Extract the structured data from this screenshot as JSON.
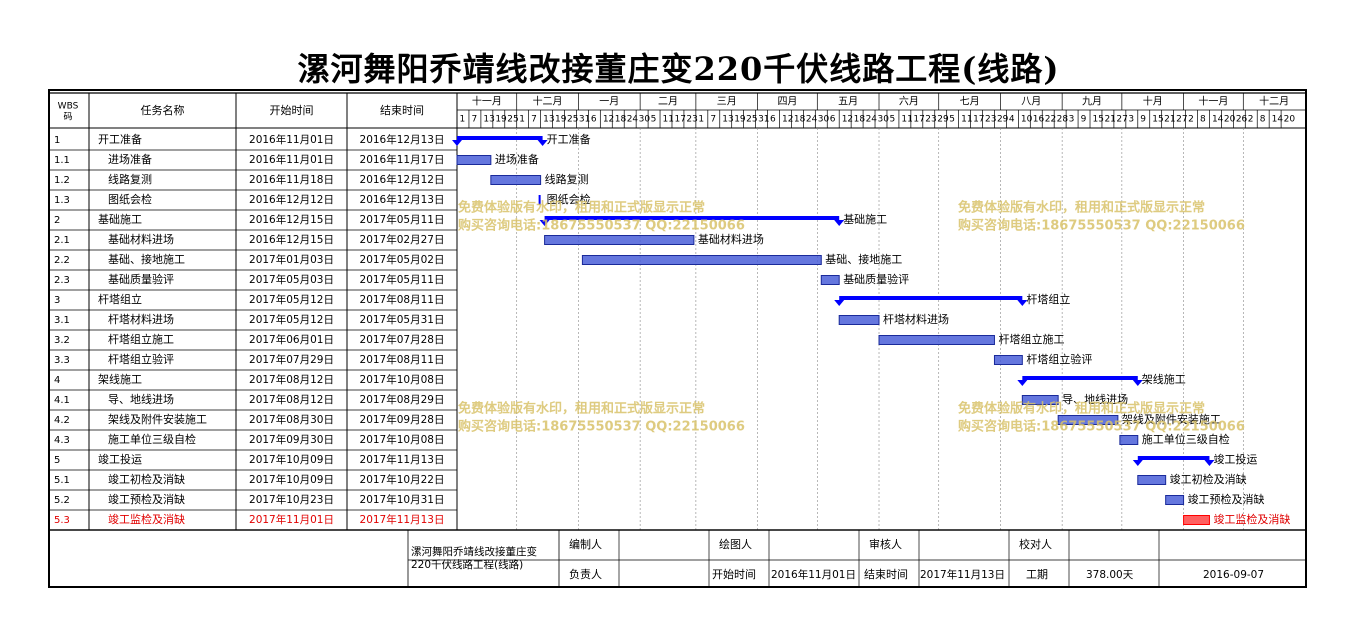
{
  "title": "漯河舞阳乔靖线改接董庄变220千伏线路工程(线路)",
  "table_header": {
    "wbs": "WBS\n码",
    "task": "任务名称",
    "start": "开始时间",
    "end": "结束时间"
  },
  "timeline": {
    "start_date": "2016-11-01",
    "months": [
      "十一月",
      "十二月",
      "一月",
      "二月",
      "三月",
      "四月",
      "五月",
      "六月",
      "七月",
      "八月",
      "九月",
      "十月",
      "十一月",
      "十二月"
    ],
    "month_lengths": [
      30,
      31,
      31,
      28,
      31,
      30,
      31,
      30,
      31,
      31,
      30,
      31,
      30,
      31
    ],
    "day_ticks": [
      [
        "1",
        "7",
        "13",
        "19",
        "25"
      ],
      [
        "1",
        "7",
        "13",
        "19",
        "25",
        "31"
      ],
      [
        "6",
        "12",
        "18",
        "24",
        "30"
      ],
      [
        "5",
        "11",
        "17",
        "23"
      ],
      [
        "1",
        "7",
        "13",
        "19",
        "25",
        "31"
      ],
      [
        "6",
        "12",
        "18",
        "24",
        "30"
      ],
      [
        "6",
        "12",
        "18",
        "24",
        "30"
      ],
      [
        "5",
        "11",
        "17",
        "23",
        "29"
      ],
      [
        "5",
        "11",
        "17",
        "23",
        "29"
      ],
      [
        "4",
        "10",
        "16",
        "22",
        "28"
      ],
      [
        "3",
        "9",
        "15",
        "21",
        "27"
      ],
      [
        "3",
        "9",
        "15",
        "21",
        "27"
      ],
      [
        "2",
        "8",
        "14",
        "20",
        "26"
      ],
      [
        "2",
        "8",
        "14",
        "20"
      ]
    ]
  },
  "tasks": [
    {
      "wbs": "1",
      "name": "开工准备",
      "start": "2016年11月01日",
      "end": "2016年12月13日",
      "level": 0,
      "summary": true,
      "s": "2016-11-01",
      "e": "2016-12-13",
      "label": "开工准备"
    },
    {
      "wbs": "1.1",
      "name": "进场准备",
      "start": "2016年11月01日",
      "end": "2016年11月17日",
      "level": 1,
      "s": "2016-11-01",
      "e": "2016-11-17",
      "label": "进场准备"
    },
    {
      "wbs": "1.2",
      "name": "线路复测",
      "start": "2016年11月18日",
      "end": "2016年12月12日",
      "level": 1,
      "s": "2016-11-18",
      "e": "2016-12-12",
      "label": "线路复测"
    },
    {
      "wbs": "1.3",
      "name": "图纸会检",
      "start": "2016年12月12日",
      "end": "2016年12月13日",
      "level": 1,
      "milestone": true,
      "s": "2016-12-12",
      "e": "2016-12-13",
      "label": "图纸会检"
    },
    {
      "wbs": "2",
      "name": "基础施工",
      "start": "2016年12月15日",
      "end": "2017年05月11日",
      "level": 0,
      "summary": true,
      "s": "2016-12-15",
      "e": "2017-05-11",
      "label": "基础施工"
    },
    {
      "wbs": "2.1",
      "name": "基础材料进场",
      "start": "2016年12月15日",
      "end": "2017年02月27日",
      "level": 1,
      "s": "2016-12-15",
      "e": "2017-02-27",
      "label": "基础材料进场"
    },
    {
      "wbs": "2.2",
      "name": "基础、接地施工",
      "start": "2017年01月03日",
      "end": "2017年05月02日",
      "level": 1,
      "s": "2017-01-03",
      "e": "2017-05-02",
      "label": "基础、接地施工"
    },
    {
      "wbs": "2.3",
      "name": "基础质量验评",
      "start": "2017年05月03日",
      "end": "2017年05月11日",
      "level": 1,
      "s": "2017-05-03",
      "e": "2017-05-11",
      "label": "基础质量验评"
    },
    {
      "wbs": "3",
      "name": "杆塔组立",
      "start": "2017年05月12日",
      "end": "2017年08月11日",
      "level": 0,
      "summary": true,
      "s": "2017-05-12",
      "e": "2017-08-11",
      "label": "杆塔组立"
    },
    {
      "wbs": "3.1",
      "name": "杆塔材料进场",
      "start": "2017年05月12日",
      "end": "2017年05月31日",
      "level": 1,
      "s": "2017-05-12",
      "e": "2017-05-31",
      "label": "杆塔材料进场"
    },
    {
      "wbs": "3.2",
      "name": "杆塔组立施工",
      "start": "2017年06月01日",
      "end": "2017年07月28日",
      "level": 1,
      "s": "2017-06-01",
      "e": "2017-07-28",
      "label": "杆塔组立施工"
    },
    {
      "wbs": "3.3",
      "name": "杆塔组立验评",
      "start": "2017年07月29日",
      "end": "2017年08月11日",
      "level": 1,
      "s": "2017-07-29",
      "e": "2017-08-11",
      "label": "杆塔组立验评"
    },
    {
      "wbs": "4",
      "name": "架线施工",
      "start": "2017年08月12日",
      "end": "2017年10月08日",
      "level": 0,
      "summary": true,
      "s": "2017-08-12",
      "e": "2017-10-08",
      "label": "架线施工"
    },
    {
      "wbs": "4.1",
      "name": "导、地线进场",
      "start": "2017年08月12日",
      "end": "2017年08月29日",
      "level": 1,
      "s": "2017-08-12",
      "e": "2017-08-29",
      "label": "导、地线进场"
    },
    {
      "wbs": "4.2",
      "name": "架线及附件安装施工",
      "start": "2017年08月30日",
      "end": "2017年09月28日",
      "level": 1,
      "s": "2017-08-30",
      "e": "2017-09-28",
      "label": "架线及附件安装施工"
    },
    {
      "wbs": "4.3",
      "name": "施工单位三级自检",
      "start": "2017年09月30日",
      "end": "2017年10月08日",
      "level": 1,
      "s": "2017-09-30",
      "e": "2017-10-08",
      "label": "施工单位三级自检"
    },
    {
      "wbs": "5",
      "name": "竣工投运",
      "start": "2017年10月09日",
      "end": "2017年11月13日",
      "level": 0,
      "summary": true,
      "s": "2017-10-09",
      "e": "2017-11-13",
      "label": "竣工投运"
    },
    {
      "wbs": "5.1",
      "name": "竣工初检及消缺",
      "start": "2017年10月09日",
      "end": "2017年10月22日",
      "level": 1,
      "s": "2017-10-09",
      "e": "2017-10-22",
      "label": "竣工初检及消缺"
    },
    {
      "wbs": "5.2",
      "name": "竣工预检及消缺",
      "start": "2017年10月23日",
      "end": "2017年10月31日",
      "level": 1,
      "s": "2017-10-23",
      "e": "2017-10-31",
      "label": "竣工预检及消缺"
    },
    {
      "wbs": "5.3",
      "name": "竣工监检及消缺",
      "start": "2017年11月01日",
      "end": "2017年11月13日",
      "level": 1,
      "critical": true,
      "s": "2017-11-01",
      "e": "2017-11-13",
      "label": "竣工监检及消缺"
    }
  ],
  "watermark": {
    "line1": "免费体验版有水印，租用和正式版显示正常",
    "line2": "购买咨询电话:18675550537 QQ:22150066"
  },
  "footer": {
    "project_name": "漯河舞阳乔靖线改接董庄变220千伏线路工程(线路)",
    "editor_label": "编制人",
    "drawer_label": "绘图人",
    "reviewer_label": "审核人",
    "checker_label": "校对人",
    "owner_label": "负责人",
    "start_label": "开始时间",
    "start_value": "2016年11月01日",
    "end_label": "结束时间",
    "end_value": "2017年11月13日",
    "duration_label": "工期",
    "duration_value": "378.00天",
    "date_value": "2016-09-07"
  },
  "colors": {
    "summary": "#0000ff",
    "task_fill": "#4a5fd8",
    "task_border": "#1a2a9a",
    "critical": "#ff0000",
    "watermark": "#d8c26a",
    "red_text": "#e00000"
  }
}
